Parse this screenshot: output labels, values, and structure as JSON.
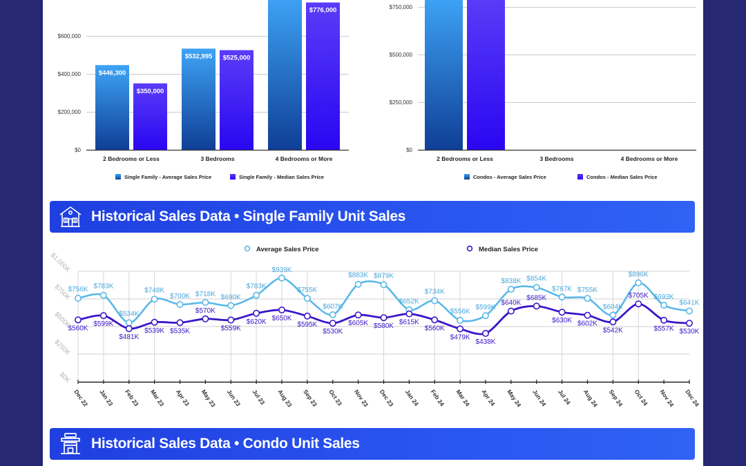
{
  "colors": {
    "frame": "#262873",
    "avg_bar_top": "#3ea3f5",
    "avg_bar_bottom": "#0f3f96",
    "median_bar_top": "#5a3cf7",
    "median_bar_bottom": "#2a06f2",
    "avg_line": "#5ab8e8",
    "median_line": "#3a16c8",
    "banner": "#2448ea"
  },
  "banners": [
    {
      "icon": "house-icon",
      "title": "Historical Sales Data • Single Family Unit Sales"
    },
    {
      "icon": "condo-building-icon",
      "title": "Historical Sales Data • Condo Unit Sales"
    }
  ],
  "chart_data": [
    {
      "type": "bar",
      "title": "",
      "categories": [
        "2 Bedrooms or Less",
        "3 Bedrooms",
        "4 Bedrooms or More"
      ],
      "series": [
        {
          "name": "Single Family - Average Sales Price",
          "values": [
            446300,
            532995,
            820000
          ],
          "labels": [
            "$446,300",
            "$532,995",
            ""
          ]
        },
        {
          "name": "Single Family - Median Sales Price",
          "values": [
            350000,
            525000,
            776000
          ],
          "labels": [
            "$350,000",
            "$525,000",
            "$776,000"
          ]
        }
      ],
      "yticks": [
        0,
        200000,
        400000,
        600000
      ],
      "ytick_labels": [
        "$0",
        "$200,000",
        "$400,000",
        "$600,000"
      ],
      "ylim": [
        0,
        790000
      ],
      "legend": "bottom",
      "grid": true
    },
    {
      "type": "bar",
      "title": "",
      "categories": [
        "2 Bedrooms or Less",
        "3 Bedrooms",
        "4 Bedrooms or More"
      ],
      "series": [
        {
          "name": "Condos - Average Sales Price",
          "values": [
            800000,
            0,
            0
          ]
        },
        {
          "name": "Condos - Median Sales Price",
          "values": [
            800000,
            0,
            0
          ]
        }
      ],
      "yticks": [
        0,
        250000,
        500000,
        750000
      ],
      "ytick_labels": [
        "$0",
        "$250,000",
        "$500,000",
        "$750,000"
      ],
      "ylim": [
        0,
        785000
      ],
      "legend": "bottom",
      "grid": true
    },
    {
      "type": "line",
      "title": "",
      "x": [
        "Dec 22",
        "Jan 23",
        "Feb 23",
        "Mar 23",
        "Apr 23",
        "May 23",
        "Jun 23",
        "Jul 23",
        "Aug 23",
        "Sep 23",
        "Oct 23",
        "Nov 23",
        "Dec 23",
        "Jan 24",
        "Feb 24",
        "Mar 24",
        "Apr 24",
        "May 24",
        "Jun 24",
        "Jul 24",
        "Aug 24",
        "Sep 24",
        "Oct 24",
        "Nov 24",
        "Dec 24"
      ],
      "series": [
        {
          "name": "Average Sales Price",
          "values": [
            756,
            783,
            534,
            748,
            700,
            718,
            690,
            783,
            939,
            755,
            607,
            883,
            879,
            652,
            734,
            556,
            599,
            838,
            854,
            767,
            755,
            604,
            896,
            693,
            641
          ],
          "labels": [
            "$756K",
            "$783K",
            "$534K",
            "$748K",
            "$700K",
            "$718K",
            "$690K",
            "$783K",
            "$939K",
            "$755K",
            "$607K",
            "$883K",
            "$879K",
            "$652K",
            "$734K",
            "$556K",
            "$599K",
            "$838K",
            "$854K",
            "$767K",
            "$755K",
            "$604K",
            "$896K",
            "$693K",
            "$641K"
          ]
        },
        {
          "name": "Median Sales Price",
          "values": [
            560,
            599,
            481,
            539,
            535,
            570,
            559,
            620,
            650,
            595,
            530,
            605,
            580,
            615,
            560,
            479,
            438,
            640,
            685,
            630,
            602,
            542,
            705,
            557,
            530
          ],
          "labels": [
            "$560K",
            "$599K",
            "$481K",
            "$539K",
            "$535K",
            "$570K",
            "$559K",
            "$620K",
            "$650K",
            "$595K",
            "$530K",
            "$605K",
            "$580K",
            "$615K",
            "$560K",
            "$479K",
            "$438K",
            "$640K",
            "$685K",
            "$630K",
            "$602K",
            "$542K",
            "$705K",
            "$557K",
            "$530K"
          ]
        }
      ],
      "units": "thousands USD",
      "yticks": [
        0,
        250,
        500,
        750,
        1000
      ],
      "ytick_labels": [
        "$0K",
        "$250K",
        "$500K",
        "$750K",
        "$1,000K"
      ],
      "ylim": [
        0,
        1000
      ],
      "legend": "top",
      "grid": true
    }
  ]
}
